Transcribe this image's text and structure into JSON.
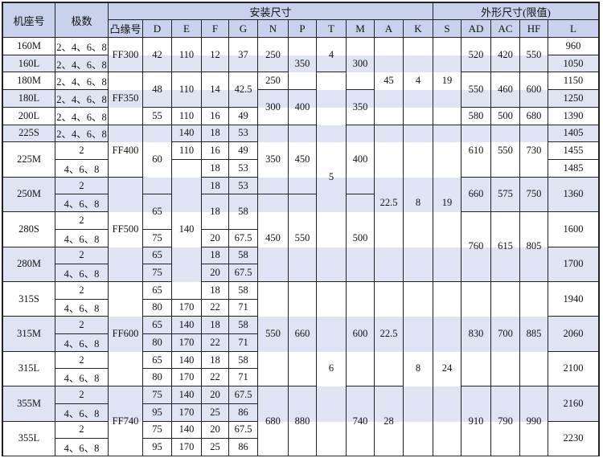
{
  "colors": {
    "header_bg": "#c8d2ec",
    "stripe_bg": "#dfe4f4",
    "border": "#222222"
  },
  "header": {
    "frame_size": "机座号",
    "poles": "极数",
    "installation_dims": "安装尺寸",
    "outline_dims": "外形尺寸(限值)",
    "flange": "凸缘号",
    "D": "D",
    "E": "E",
    "F": "F",
    "G": "G",
    "N": "N",
    "P": "P",
    "T": "T",
    "M": "M",
    "A": "A",
    "K": "K",
    "S": "S",
    "AD": "AD",
    "AC": "AC",
    "HF": "HF",
    "L": "L"
  },
  "body": {
    "frame_size": [
      "160M",
      "160L",
      "180M",
      "180L",
      "200L",
      "225S",
      "225M",
      "250M",
      "280S",
      "280M",
      "315S",
      "315M",
      "315L",
      "355M",
      "355L"
    ],
    "poles": [
      "2、4、6、8",
      "2、4、6、8",
      "2、4、6、8",
      "2、4、6、8",
      "2、4、6、8",
      "2、4、6、8",
      "2",
      "4、6、8",
      "2",
      "4、6、8",
      "2",
      "4、6、8",
      "2",
      "4、6、8",
      "2",
      "4、6、8",
      "2",
      "4、6、8",
      "2",
      "4、6、8",
      "2",
      "4、6、8",
      "2",
      "4、6、8"
    ],
    "flange": [
      "FF300",
      "FF350",
      "FF400",
      "FF500",
      "FF600",
      "FF740"
    ],
    "D": [
      "42",
      "48",
      "55",
      "60",
      "65",
      "75",
      "65",
      "75",
      "65",
      "80",
      "65",
      "80",
      "65",
      "80",
      "75",
      "95",
      "75",
      "95"
    ],
    "E": [
      "110",
      "110",
      "110",
      "140",
      "110",
      "140",
      "170",
      "140",
      "170",
      "140",
      "170",
      "140",
      "170",
      "140",
      "170"
    ],
    "F": [
      "12",
      "14",
      "16",
      "18",
      "16",
      "18",
      "18",
      "18",
      "20",
      "18",
      "20",
      "18",
      "22",
      "18",
      "22",
      "18",
      "22",
      "20",
      "25",
      "20",
      "25"
    ],
    "G": [
      "37",
      "42.5",
      "49",
      "53",
      "49",
      "53",
      "53",
      "58",
      "67.5",
      "58",
      "67.5",
      "58",
      "71",
      "58",
      "71",
      "58",
      "71",
      "67.5",
      "86",
      "67.5",
      "86"
    ],
    "N": [
      "250",
      "250",
      "300",
      "350",
      "450",
      "550",
      "680"
    ],
    "P": [
      "350",
      "400",
      "450",
      "550",
      "660",
      "880"
    ],
    "T": [
      "4",
      "5",
      "6"
    ],
    "M": [
      "300",
      "350",
      "400",
      "500",
      "600",
      "740"
    ],
    "A": [
      "45",
      "22.5",
      "22.5",
      "28"
    ],
    "K": [
      "4",
      "8",
      "8"
    ],
    "S": [
      "19",
      "19",
      "24"
    ],
    "AD": [
      "520",
      "550",
      "580",
      "610",
      "660",
      "760",
      "830",
      "910"
    ],
    "AC": [
      "420",
      "460",
      "500",
      "550",
      "575",
      "615",
      "700",
      "790"
    ],
    "HF": [
      "550",
      "600",
      "680",
      "730",
      "750",
      "805",
      "885",
      "990"
    ],
    "L": [
      "960",
      "1050",
      "1150",
      "1250",
      "1390",
      "1405",
      "1455",
      "1485",
      "1360",
      "1600",
      "1700",
      "1940",
      "2060",
      "2100",
      "2160",
      "2230"
    ]
  }
}
